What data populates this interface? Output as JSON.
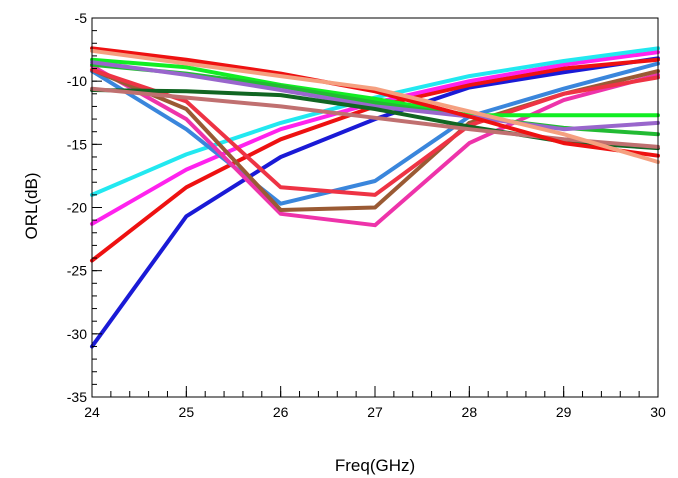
{
  "chart_data": {
    "type": "line",
    "title": "",
    "xlabel": "Freq(GHz)",
    "ylabel": "ORL(dB)",
    "xlim": [
      24,
      30
    ],
    "ylim": [
      -35,
      -5
    ],
    "xticks": [
      24,
      25,
      26,
      27,
      28,
      29,
      30
    ],
    "yticks": [
      -35,
      -30,
      -25,
      -20,
      -15,
      -10,
      -5
    ],
    "x": [
      24,
      25,
      26,
      27,
      28,
      29,
      30
    ],
    "grid": false,
    "legend": "none",
    "series": [
      {
        "color": "#1a1ad6",
        "values": [
          -31.0,
          -20.7,
          -16.0,
          -13.0,
          -10.5,
          -9.3,
          -8.2
        ]
      },
      {
        "color": "#ee1111",
        "values": [
          -24.2,
          -18.4,
          -14.6,
          -12.0,
          -10.3,
          -9.0,
          -8.3
        ]
      },
      {
        "color": "#ff22ee",
        "values": [
          -21.3,
          -17.0,
          -13.8,
          -11.7,
          -10.0,
          -8.7,
          -7.7
        ]
      },
      {
        "color": "#22e8f0",
        "values": [
          -19.0,
          -15.8,
          -13.3,
          -11.3,
          -9.6,
          -8.4,
          -7.4
        ]
      },
      {
        "color": "#3a86dc",
        "values": [
          -9.2,
          -13.8,
          -19.7,
          -17.9,
          -12.8,
          -10.6,
          -8.6
        ]
      },
      {
        "color": "#ee33aa",
        "values": [
          -8.8,
          -13.0,
          -20.5,
          -21.4,
          -14.9,
          -11.5,
          -9.5
        ]
      },
      {
        "color": "#9a5a34",
        "values": [
          -9.1,
          -12.2,
          -20.2,
          -20.0,
          -13.3,
          -11.0,
          -9.2
        ]
      },
      {
        "color": "#ee3344",
        "values": [
          -9.1,
          -11.6,
          -18.4,
          -19.0,
          -13.5,
          -11.0,
          -9.7
        ]
      },
      {
        "color": "#11ee22",
        "values": [
          -8.3,
          -8.9,
          -10.3,
          -11.4,
          -12.7,
          -12.7,
          -12.7
        ]
      },
      {
        "color": "#22bb33",
        "values": [
          -8.7,
          -9.4,
          -10.4,
          -11.7,
          -12.8,
          -13.7,
          -14.2
        ]
      },
      {
        "color": "#9966cc",
        "values": [
          -8.5,
          -9.5,
          -10.7,
          -12.0,
          -12.8,
          -13.8,
          -13.3
        ]
      },
      {
        "color": "#116622",
        "values": [
          -10.7,
          -10.8,
          -11.1,
          -12.2,
          -13.6,
          -14.8,
          -15.3
        ]
      },
      {
        "color": "#c07070",
        "values": [
          -10.6,
          -11.3,
          -12.0,
          -12.9,
          -13.8,
          -14.6,
          -15.2
        ]
      },
      {
        "color": "#ee1111",
        "values": [
          -7.4,
          -8.3,
          -9.4,
          -10.8,
          -12.8,
          -14.9,
          -15.9
        ]
      },
      {
        "color": "#f5a080",
        "values": [
          -7.6,
          -8.6,
          -9.6,
          -10.6,
          -12.4,
          -14.2,
          -16.4
        ]
      }
    ]
  }
}
